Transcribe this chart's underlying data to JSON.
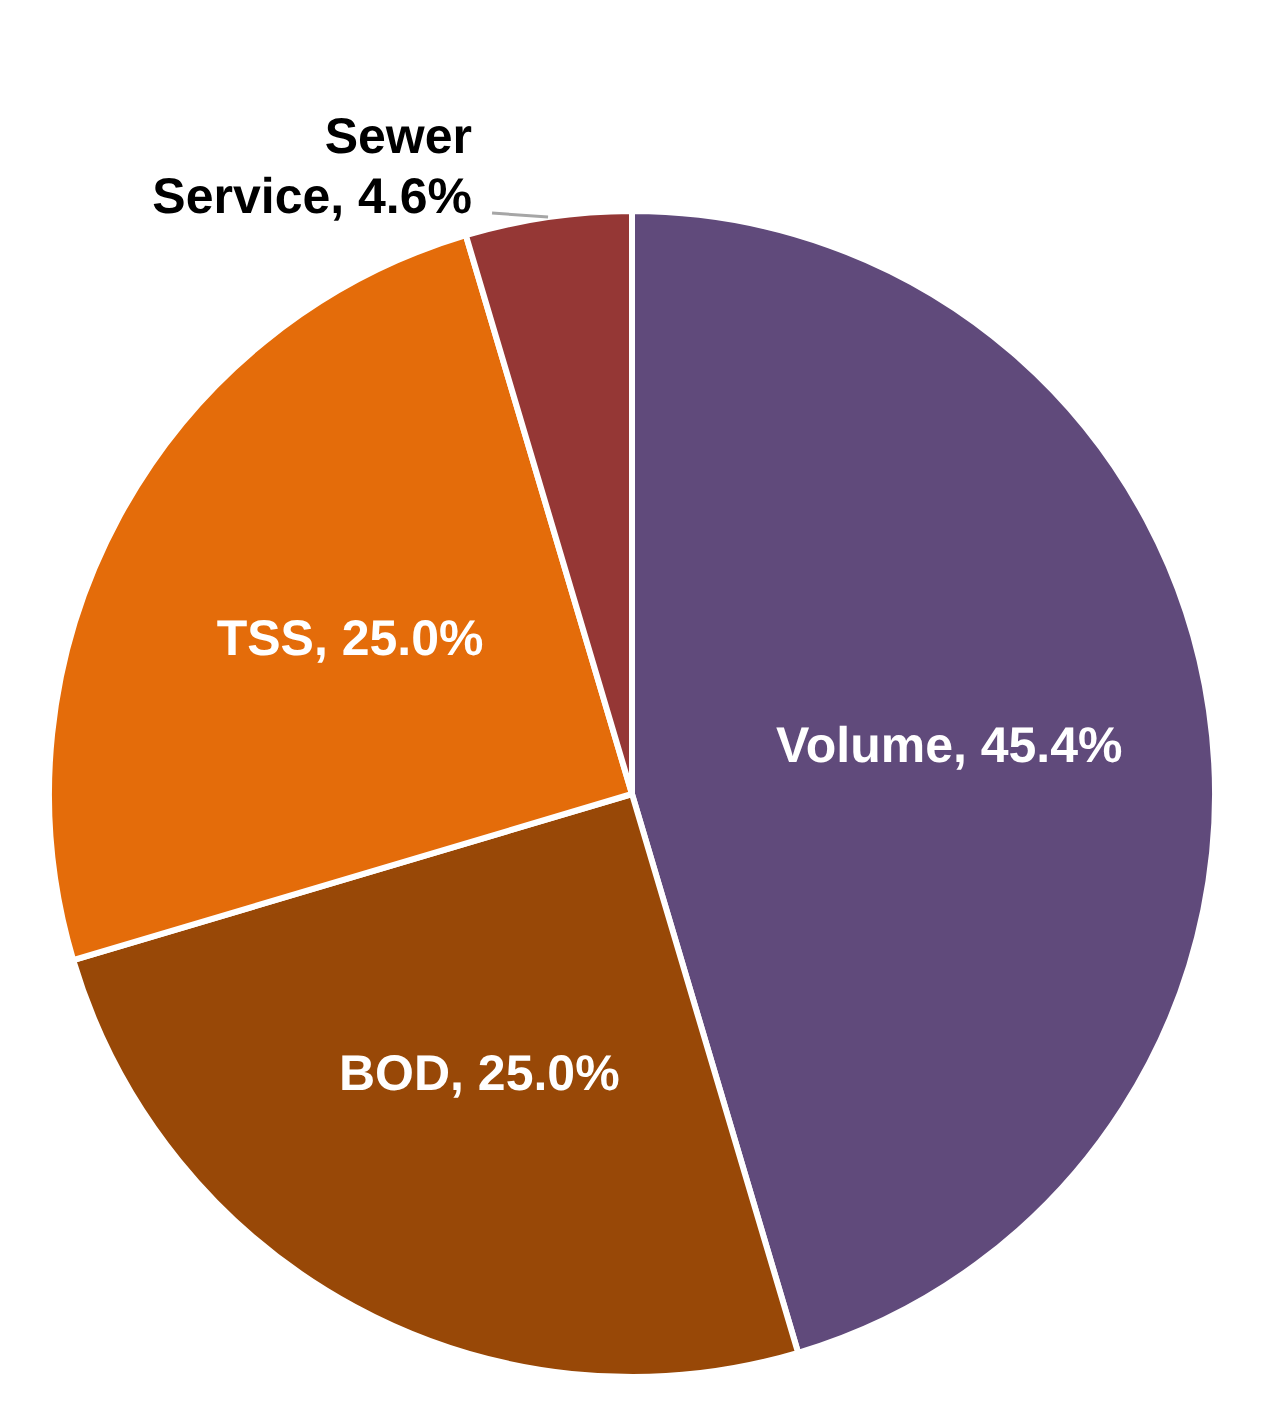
{
  "chart_data": {
    "type": "pie",
    "categories": [
      "Volume",
      "BOD",
      "TSS",
      "Sewer Service"
    ],
    "values": [
      45.4,
      25.0,
      25.0,
      4.6
    ],
    "colors": [
      "#604a7b",
      "#984807",
      "#e46c0a",
      "#953735"
    ],
    "value_labels": [
      "45.4%",
      "25.0%",
      "25.0%",
      "4.6%"
    ],
    "legend": false
  }
}
